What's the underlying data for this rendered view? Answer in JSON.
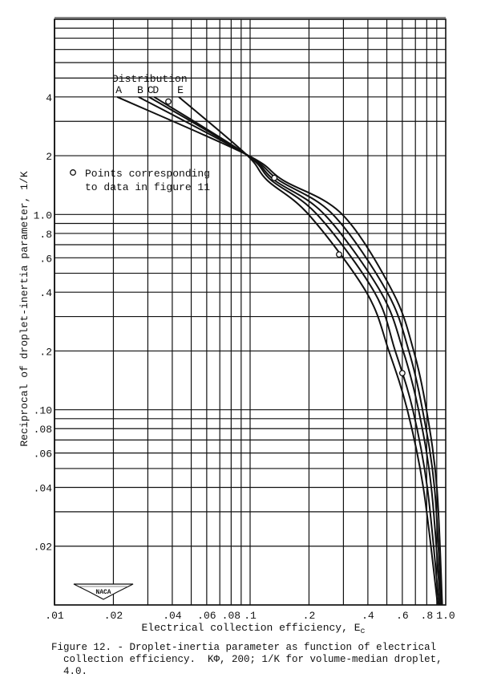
{
  "chart_data": {
    "type": "line",
    "xscale": "log",
    "yscale": "log",
    "xlim": [
      0.01,
      1.0
    ],
    "ylim": [
      0.01,
      10
    ],
    "grid": true,
    "xlabel": "Electrical collection efficiency, E",
    "xlabel_subscript": "c",
    "ylabel": "Reciprocal of droplet-inertia parameter, 1/K",
    "x_ticks": [
      {
        "v": 0.01,
        "label": ".01"
      },
      {
        "v": 0.02,
        "label": ".02"
      },
      {
        "v": 0.04,
        "label": ".04"
      },
      {
        "v": 0.06,
        "label": ".06"
      },
      {
        "v": 0.08,
        "label": ".08"
      },
      {
        "v": 0.1,
        "label": ".1"
      },
      {
        "v": 0.2,
        "label": ".2"
      },
      {
        "v": 0.4,
        "label": ".4"
      },
      {
        "v": 0.6,
        "label": ".6"
      },
      {
        "v": 0.8,
        "label": ".8"
      },
      {
        "v": 1.0,
        "label": "1.0"
      }
    ],
    "y_ticks": [
      {
        "v": 4,
        "label": "4"
      },
      {
        "v": 2,
        "label": "2"
      },
      {
        "v": 1.0,
        "label": "1.0"
      },
      {
        "v": 0.8,
        "label": ".8"
      },
      {
        "v": 0.6,
        "label": ".6"
      },
      {
        "v": 0.4,
        "label": ".4"
      },
      {
        "v": 0.2,
        "label": ".2"
      },
      {
        "v": 0.1,
        "label": ".10"
      },
      {
        "v": 0.08,
        "label": ".08"
      },
      {
        "v": 0.06,
        "label": ".06"
      },
      {
        "v": 0.04,
        "label": ".04"
      },
      {
        "v": 0.02,
        "label": ".02"
      }
    ],
    "legend_title": "Distribution",
    "series": [
      {
        "name": "A",
        "points": [
          [
            0.0209,
            4
          ],
          [
            0.0956,
            2.03
          ],
          [
            0.147,
            1.5
          ],
          [
            0.296,
            1.0
          ],
          [
            0.537,
            0.4
          ],
          [
            0.686,
            0.2
          ],
          [
            0.797,
            0.1
          ],
          [
            0.901,
            0.04
          ],
          [
            0.96,
            0.01
          ]
        ]
      },
      {
        "name": "B",
        "points": [
          [
            0.0269,
            4
          ],
          [
            0.0956,
            2.03
          ],
          [
            0.14,
            1.5
          ],
          [
            0.265,
            1.0
          ],
          [
            0.502,
            0.4
          ],
          [
            0.648,
            0.2
          ],
          [
            0.761,
            0.1
          ],
          [
            0.876,
            0.04
          ],
          [
            0.95,
            0.01
          ]
        ]
      },
      {
        "name": "C",
        "points": [
          [
            0.0304,
            4
          ],
          [
            0.0956,
            2.03
          ],
          [
            0.133,
            1.5
          ],
          [
            0.24,
            1.0
          ],
          [
            0.466,
            0.4
          ],
          [
            0.606,
            0.2
          ],
          [
            0.726,
            0.1
          ],
          [
            0.844,
            0.04
          ],
          [
            0.94,
            0.01
          ]
        ]
      },
      {
        "name": "D",
        "points": [
          [
            0.0323,
            4
          ],
          [
            0.0956,
            2.03
          ],
          [
            0.128,
            1.5
          ],
          [
            0.22,
            1.0
          ],
          [
            0.432,
            0.4
          ],
          [
            0.552,
            0.2
          ],
          [
            0.679,
            0.1
          ],
          [
            0.805,
            0.04
          ],
          [
            0.925,
            0.01
          ]
        ]
      },
      {
        "name": "E",
        "points": [
          [
            0.0432,
            4
          ],
          [
            0.0956,
            2.03
          ],
          [
            0.122,
            1.5
          ],
          [
            0.199,
            1.0
          ],
          [
            0.393,
            0.4
          ],
          [
            0.512,
            0.2
          ],
          [
            0.636,
            0.1
          ],
          [
            0.768,
            0.04
          ],
          [
            0.91,
            0.01
          ]
        ]
      }
    ],
    "data_points": {
      "label_line1": "Points corresponding",
      "label_line2": "to data in figure 11",
      "points": [
        [
          0.0382,
          3.79
        ],
        [
          0.133,
          1.54
        ],
        [
          0.285,
          0.624
        ],
        [
          0.6,
          0.154
        ]
      ]
    },
    "logo": "NACA"
  },
  "caption": {
    "line1": "Figure 12. - Droplet-inertia parameter as function of electrical",
    "line2": "  collection efficiency.  KΦ, 200; 1/K for volume-median droplet,",
    "line3": "  4.0."
  }
}
